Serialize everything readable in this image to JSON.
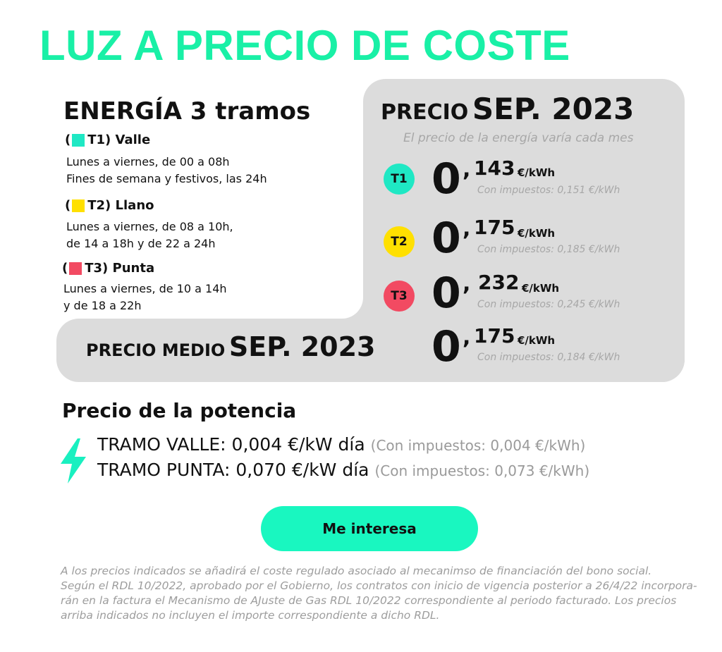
{
  "title": "LUZ A PRECIO DE COSTE",
  "energy": {
    "title": "ENERGÍA 3 tramos",
    "tramos": [
      {
        "open": "(",
        "code": "T1)",
        "name": "Valle",
        "color": "#1fe8c4",
        "lines": [
          "Lunes a viernes, de 00 a 08h",
          "Fines de semana y festivos, las 24h"
        ]
      },
      {
        "open": "(",
        "code": "T2)",
        "name": "Llano",
        "color": "#ffe000",
        "lines": [
          "Lunes a viernes, de 08 a 10h,",
          "de 14 a 18h y de 22 a 24h"
        ]
      },
      {
        "open": "(",
        "code": "T3)",
        "name": "Punta",
        "color": "#f24a62",
        "lines": [
          "Lunes a viernes, de 10 a 14h",
          "y de 18 a 22h"
        ]
      }
    ]
  },
  "precio": {
    "title_a": "PRECIO",
    "title_b": "SEP. 2023",
    "subtitle": "El precio de la energía varía cada mes",
    "rows": [
      {
        "badge": "T1",
        "color": "#1fe8c4",
        "int": "0",
        "comma": ",",
        "dec": "143",
        "unit": "€/kWh",
        "tax": "Con impuestos: 0,151 €/kWh"
      },
      {
        "badge": "T2",
        "color": "#ffe000",
        "int": "0",
        "comma": ",",
        "dec": "175",
        "unit": "€/kWh",
        "tax": "Con impuestos: 0,185 €/kWh"
      },
      {
        "badge": "T3",
        "color": "#f24a62",
        "int": "0",
        "comma": ",",
        "dec": "232",
        "unit": "€/kWh",
        "tax": "Con impuestos: 0,245 €/kWh"
      }
    ]
  },
  "medio": {
    "title_a": "PRECIO MEDIO",
    "title_b": "SEP. 2023",
    "int": "0",
    "comma": ",",
    "dec": "175",
    "unit": "€/kWh",
    "tax": "Con impuestos: 0,184 €/kWh"
  },
  "potencia": {
    "title": "Precio de la potencia",
    "icon": "lightning-bolt-icon",
    "icon_color": "#19f0c0",
    "lines": [
      {
        "text": "TRAMO VALLE: 0,004 €/kW día",
        "tax": "(Con impuestos: 0,004 €/kWh)"
      },
      {
        "text": "TRAMO PUNTA: 0,070 €/kW día",
        "tax": "(Con impuestos: 0,073 €/kWh)"
      }
    ]
  },
  "cta": {
    "label": "Me interesa",
    "color": "#19f7c0"
  },
  "footnote": [
    "A los precios indicados se añadirá el coste regulado asociado al mecanimso de financiación del bono social.",
    "Según el RDL 10/2022, aprobado por el Gobierno, los contratos con inicio de vigencia posterior a 26/4/22 incorpora-",
    "rán en la factura el Mecanismo de AJuste de Gas RDL 10/2022 correspondiente  al periodo facturado. Los precios",
    "arriba indicados no incluyen el importe correspondiente a dicho RDL."
  ],
  "colors": {
    "accent": "#19f0a6",
    "panel": "#dcdcdc",
    "muted": "#a7a7a7"
  }
}
